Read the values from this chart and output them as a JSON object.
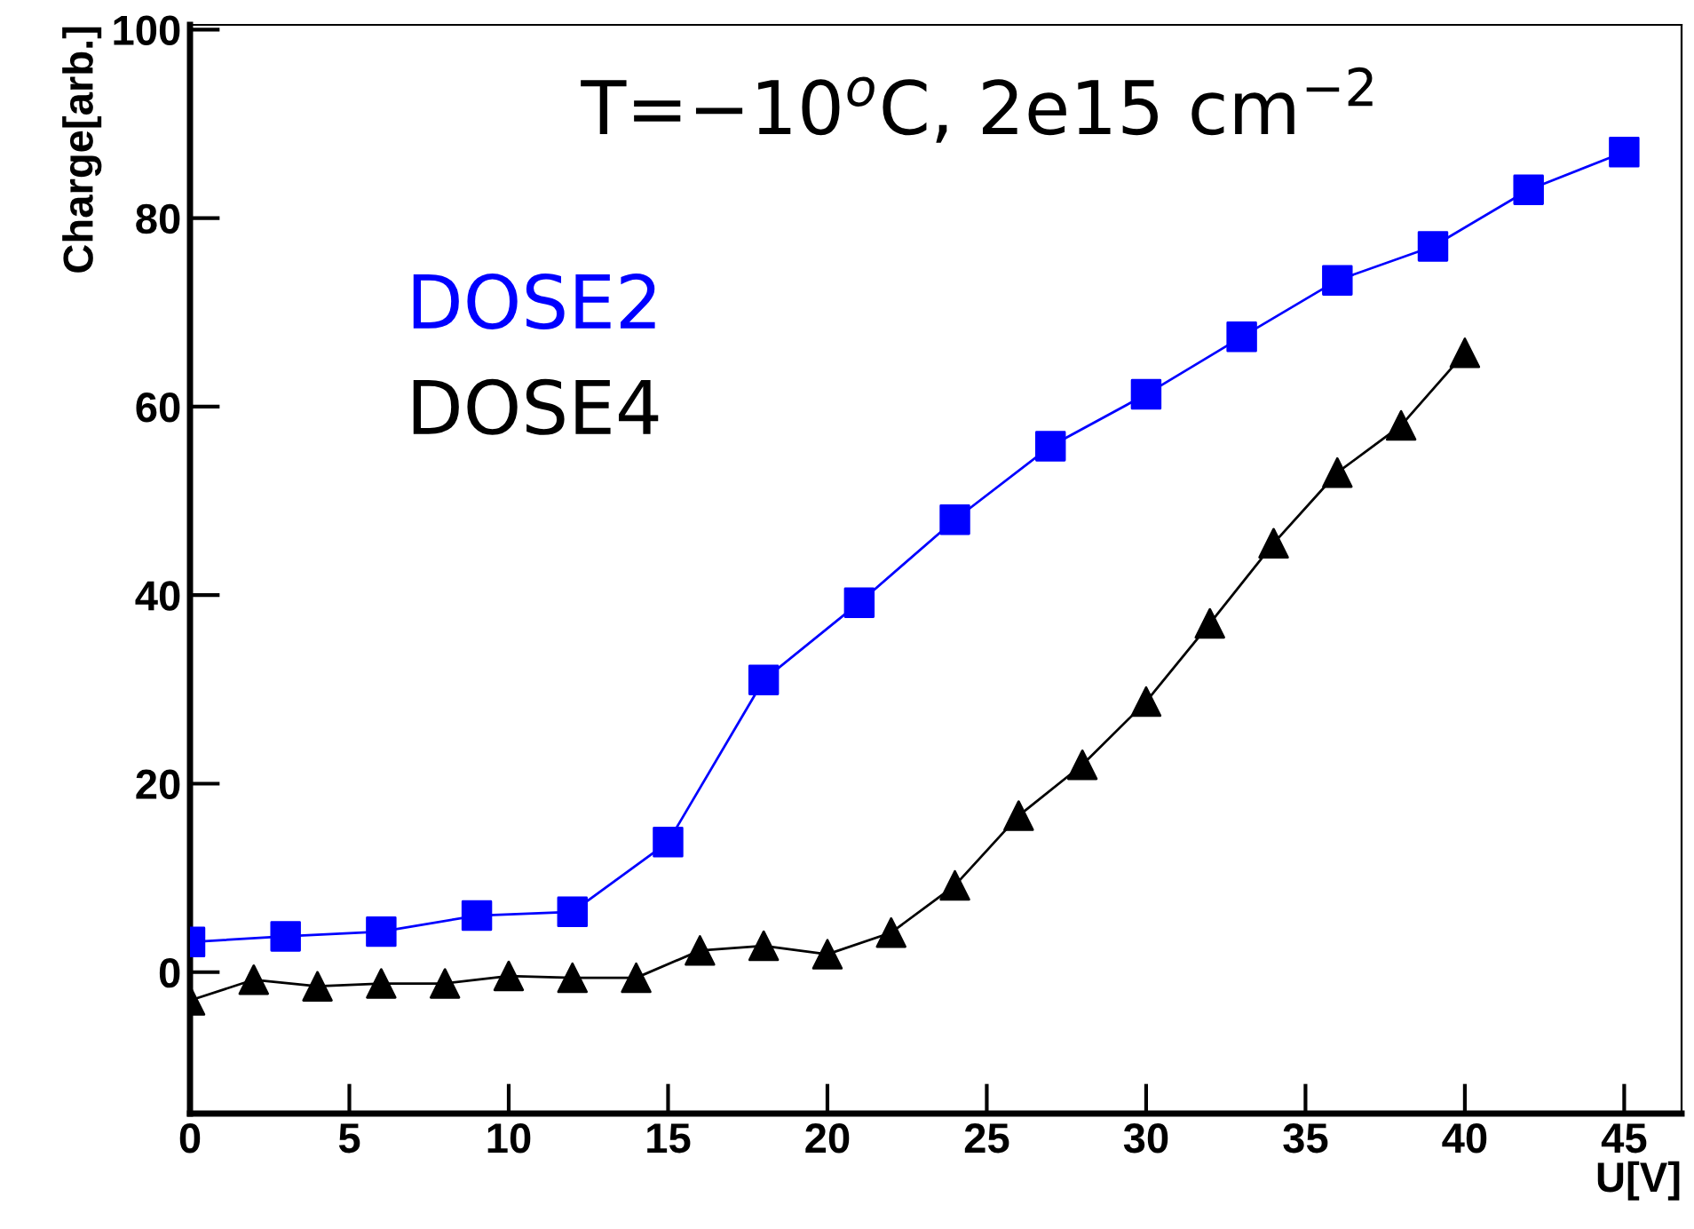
{
  "chart_data": {
    "type": "line",
    "xlabel": "U[V]",
    "ylabel": "Charge[arb.]",
    "annotations": [
      "T=−10$^{o}$C, 2e15 cm$^{−2}$"
    ],
    "series": [
      {
        "name": "DOSE2",
        "color": "#0000ff",
        "marker": "square",
        "x": [
          0,
          3,
          6,
          9,
          12,
          15,
          18,
          21,
          24,
          27,
          30,
          33,
          36,
          39,
          42,
          45
        ],
        "values": [
          3.2,
          3.8,
          4.3,
          6,
          6.4,
          13.8,
          31,
          39.2,
          48,
          55.8,
          61.3,
          67.4,
          73.4,
          77,
          83,
          87
        ]
      },
      {
        "name": "DOSE4",
        "color": "#000000",
        "marker": "triangle",
        "x": [
          0,
          2,
          4,
          6,
          8,
          10,
          12,
          14,
          16,
          18,
          20,
          22,
          24,
          26,
          28,
          30,
          32,
          34,
          36,
          38,
          40
        ],
        "values": [
          -3,
          -0.8,
          -1.5,
          -1.2,
          -1.2,
          -0.4,
          -0.6,
          -0.6,
          2.3,
          2.8,
          1.9,
          4.2,
          9.2,
          16.6,
          22,
          28.7,
          37,
          45.5,
          53,
          58,
          65.7
        ]
      }
    ],
    "xlim": [
      0,
      46.8
    ],
    "ylim": [
      -15,
      100.5
    ],
    "xticks": [
      0,
      5,
      10,
      15,
      20,
      25,
      30,
      35,
      40,
      45
    ],
    "yticks": [
      0,
      20,
      40,
      60,
      80,
      100
    ],
    "grid": false,
    "legend": "top left"
  }
}
